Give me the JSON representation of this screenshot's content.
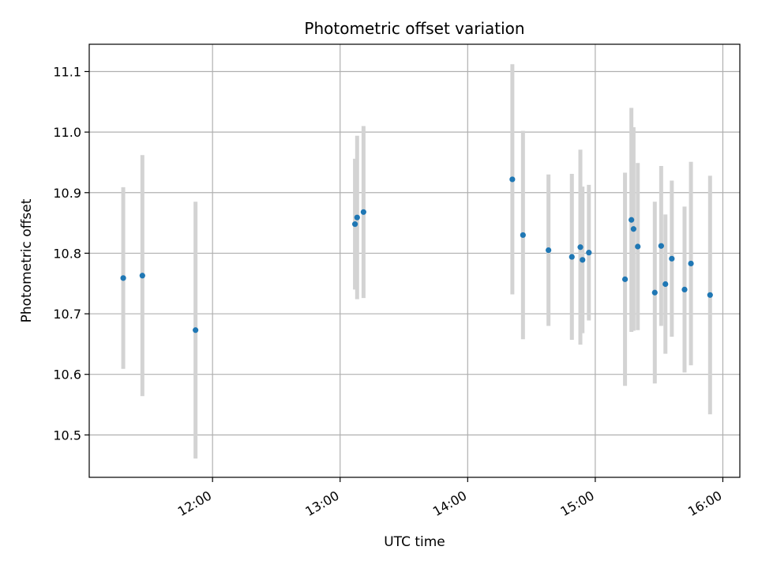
{
  "chart_data": {
    "type": "scatter",
    "title": "Photometric offset variation",
    "xlabel": "UTC time",
    "ylabel": "Photometric offset",
    "xlim": [
      "11:02",
      "16:08"
    ],
    "ylim": [
      10.43,
      11.145
    ],
    "x_ticks": [
      "12:00",
      "13:00",
      "14:00",
      "15:00",
      "16:00"
    ],
    "y_ticks": [
      10.5,
      10.6,
      10.7,
      10.8,
      10.9,
      11.0,
      11.1
    ],
    "grid": true,
    "colors": {
      "marker": "#1f77b4",
      "errorbar": "#d3d3d3",
      "grid": "#b0b0b0"
    },
    "points": [
      {
        "x": "11:18",
        "y": 10.759,
        "err": 0.15
      },
      {
        "x": "11:27",
        "y": 10.763,
        "err": 0.199
      },
      {
        "x": "11:52",
        "y": 10.673,
        "err": 0.212
      },
      {
        "x": "13:07",
        "y": 10.848,
        "err": 0.108
      },
      {
        "x": "13:08",
        "y": 10.859,
        "err": 0.135
      },
      {
        "x": "13:11",
        "y": 10.868,
        "err": 0.142
      },
      {
        "x": "14:21",
        "y": 10.922,
        "err": 0.19
      },
      {
        "x": "14:26",
        "y": 10.83,
        "err": 0.172
      },
      {
        "x": "14:38",
        "y": 10.805,
        "err": 0.125
      },
      {
        "x": "14:49",
        "y": 10.794,
        "err": 0.137
      },
      {
        "x": "14:53",
        "y": 10.81,
        "err": 0.161
      },
      {
        "x": "14:54",
        "y": 10.789,
        "err": 0.121
      },
      {
        "x": "14:57",
        "y": 10.801,
        "err": 0.112
      },
      {
        "x": "15:14",
        "y": 10.757,
        "err": 0.176
      },
      {
        "x": "15:17",
        "y": 10.855,
        "err": 0.185
      },
      {
        "x": "15:18",
        "y": 10.84,
        "err": 0.168
      },
      {
        "x": "15:20",
        "y": 10.811,
        "err": 0.138
      },
      {
        "x": "15:28",
        "y": 10.735,
        "err": 0.15
      },
      {
        "x": "15:31",
        "y": 10.812,
        "err": 0.132
      },
      {
        "x": "15:33",
        "y": 10.749,
        "err": 0.115
      },
      {
        "x": "15:36",
        "y": 10.791,
        "err": 0.129
      },
      {
        "x": "15:42",
        "y": 10.74,
        "err": 0.137
      },
      {
        "x": "15:45",
        "y": 10.783,
        "err": 0.168
      },
      {
        "x": "15:54",
        "y": 10.731,
        "err": 0.197
      }
    ]
  }
}
